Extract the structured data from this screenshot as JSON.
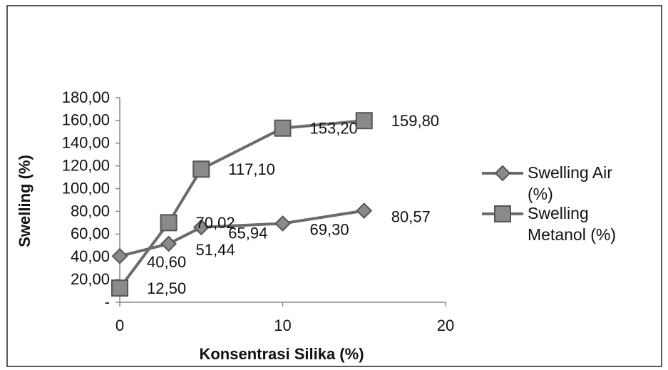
{
  "chart_data": {
    "type": "line",
    "xlabel": "Konsentrasi Silika (%)",
    "ylabel": "Swelling (%)",
    "x": [
      0,
      3,
      5,
      10,
      15
    ],
    "series": [
      {
        "name": "Swelling  Air (%)",
        "color": "#6b6b6b",
        "marker": "diamond",
        "values": [
          40.6,
          51.44,
          65.94,
          69.3,
          80.57
        ],
        "value_labels": [
          "40,60",
          "51,44",
          "65,94",
          "69,30",
          "80,57"
        ]
      },
      {
        "name": "Swelling Metanol (%)",
        "color": "#6b6b6b",
        "marker": "square",
        "values": [
          12.5,
          70.02,
          117.1,
          153.2,
          159.8
        ],
        "value_labels": [
          "12,50",
          "70,02",
          "117,10",
          "153,20",
          "159,80"
        ]
      }
    ],
    "xlim": [
      0,
      20
    ],
    "xticks": [
      0,
      10,
      20
    ],
    "ylim": [
      0,
      180
    ],
    "yticks": [
      {
        "value": 0,
        "label": "-"
      },
      {
        "value": 20,
        "label": "20,00"
      },
      {
        "value": 40,
        "label": "40,00"
      },
      {
        "value": 60,
        "label": "60,00"
      },
      {
        "value": 80,
        "label": "80,00"
      },
      {
        "value": 100,
        "label": "100,00"
      },
      {
        "value": 120,
        "label": "120,00"
      },
      {
        "value": 140,
        "label": "140,00"
      },
      {
        "value": 160,
        "label": "160,00"
      },
      {
        "value": 180,
        "label": "180,00"
      }
    ],
    "legend": "right"
  }
}
